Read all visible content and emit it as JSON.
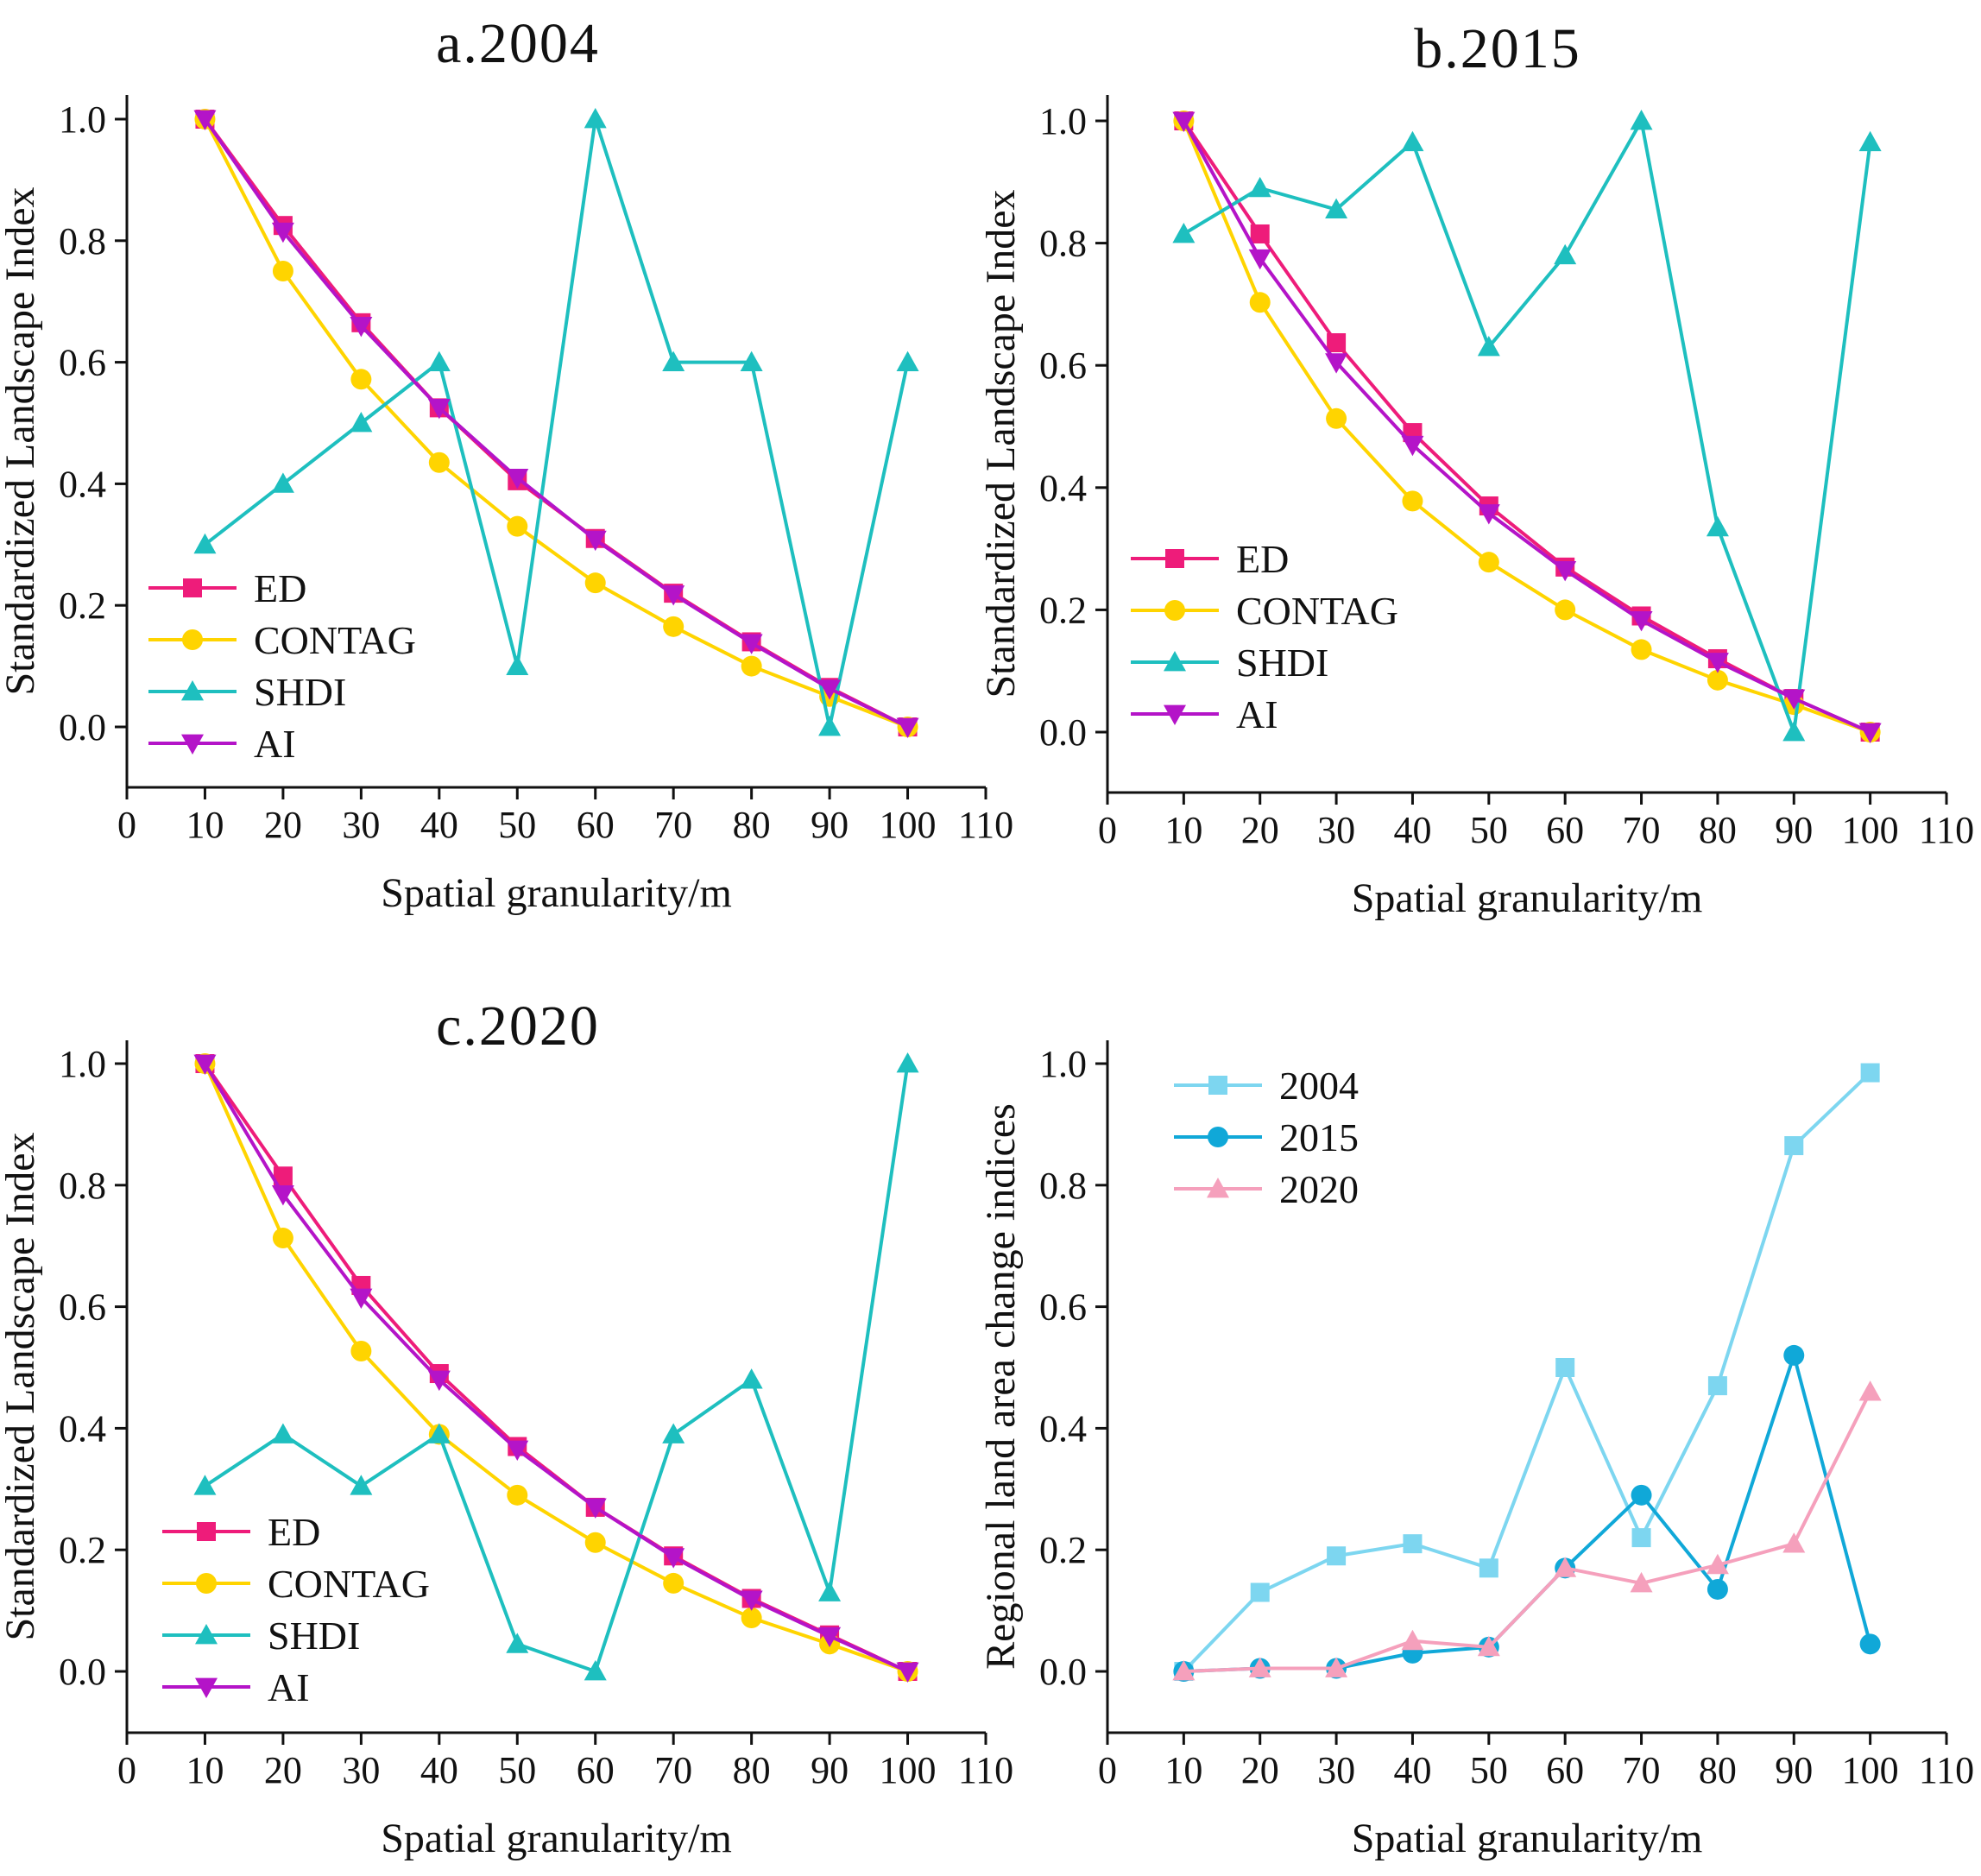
{
  "chart_data": [
    {
      "type": "line",
      "title": "a.2004",
      "xlabel": "Spatial granularity/m",
      "ylabel": "Standardized Landscape Index",
      "xlim": [
        0,
        110
      ],
      "ylim": [
        -0.1,
        1.0
      ],
      "xticks": [
        "0",
        "10",
        "20",
        "30",
        "40",
        "50",
        "60",
        "70",
        "80",
        "90",
        "100",
        "110"
      ],
      "yticks": [
        "0.0",
        "0.2",
        "0.4",
        "0.6",
        "0.8",
        "1.0"
      ],
      "legend_position": "lower-left",
      "x": [
        10,
        20,
        30,
        40,
        50,
        60,
        70,
        80,
        90,
        100
      ],
      "series": [
        {
          "name": "ED",
          "color": "#ee1c7a",
          "marker": "square",
          "values": [
            1.0,
            0.825,
            0.665,
            0.525,
            0.405,
            0.31,
            0.22,
            0.14,
            0.065,
            0.0
          ]
        },
        {
          "name": "CONTAG",
          "color": "#ffd400",
          "marker": "circle",
          "values": [
            1.0,
            0.75,
            0.572,
            0.435,
            0.33,
            0.237,
            0.165,
            0.1,
            0.05,
            0.0
          ]
        },
        {
          "name": "SHDI",
          "color": "#1ebfbf",
          "marker": "triangle-up",
          "values": [
            0.3,
            0.4,
            0.5,
            0.6,
            0.1,
            1.0,
            0.6,
            0.6,
            0.0,
            0.6
          ]
        },
        {
          "name": "AI",
          "color": "#b414c8",
          "marker": "triangle-down",
          "values": [
            1.0,
            0.815,
            0.66,
            0.525,
            0.41,
            0.308,
            0.218,
            0.138,
            0.063,
            0.0
          ]
        }
      ]
    },
    {
      "type": "line",
      "title": "b.2015",
      "xlabel": "Spatial granularity/m",
      "ylabel": "Standardized Landscape Index",
      "xlim": [
        0,
        110
      ],
      "ylim": [
        -0.1,
        1.0
      ],
      "xticks": [
        "0",
        "10",
        "20",
        "30",
        "40",
        "50",
        "60",
        "70",
        "80",
        "90",
        "100",
        "110"
      ],
      "yticks": [
        "0.0",
        "0.2",
        "0.4",
        "0.6",
        "0.8",
        "1.0"
      ],
      "legend_position": "lower-left",
      "x": [
        10,
        20,
        30,
        40,
        50,
        60,
        70,
        80,
        90,
        100
      ],
      "series": [
        {
          "name": "ED",
          "color": "#ee1c7a",
          "marker": "square",
          "values": [
            1.0,
            0.815,
            0.637,
            0.49,
            0.37,
            0.27,
            0.19,
            0.12,
            0.055,
            0.0
          ]
        },
        {
          "name": "CONTAG",
          "color": "#ffd400",
          "marker": "circle",
          "values": [
            1.0,
            0.703,
            0.513,
            0.378,
            0.278,
            0.2,
            0.135,
            0.085,
            0.045,
            0.0
          ]
        },
        {
          "name": "SHDI",
          "color": "#1ebfbf",
          "marker": "triangle-up",
          "values": [
            0.815,
            0.89,
            0.855,
            0.965,
            0.63,
            0.78,
            1.0,
            0.335,
            0.0,
            0.965
          ]
        },
        {
          "name": "AI",
          "color": "#b414c8",
          "marker": "triangle-down",
          "values": [
            1.0,
            0.775,
            0.605,
            0.47,
            0.358,
            0.265,
            0.183,
            0.115,
            0.055,
            0.0
          ]
        }
      ]
    },
    {
      "type": "line",
      "title": "c.2020",
      "xlabel": "Spatial granularity/m",
      "ylabel": "Standardized Landscape Index",
      "xlim": [
        0,
        110
      ],
      "ylim": [
        -0.1,
        1.0
      ],
      "xticks": [
        "0",
        "10",
        "20",
        "30",
        "40",
        "50",
        "60",
        "70",
        "80",
        "90",
        "100",
        "110"
      ],
      "yticks": [
        "0.0",
        "0.2",
        "0.4",
        "0.6",
        "0.8",
        "1.0"
      ],
      "legend_position": "lower-left",
      "x": [
        10,
        20,
        30,
        40,
        50,
        60,
        70,
        80,
        90,
        100
      ],
      "series": [
        {
          "name": "ED",
          "color": "#ee1c7a",
          "marker": "square",
          "values": [
            1.0,
            0.815,
            0.635,
            0.49,
            0.37,
            0.27,
            0.19,
            0.12,
            0.06,
            0.0
          ]
        },
        {
          "name": "CONTAG",
          "color": "#ffd400",
          "marker": "circle",
          "values": [
            1.0,
            0.713,
            0.527,
            0.39,
            0.29,
            0.212,
            0.145,
            0.088,
            0.045,
            0.0
          ]
        },
        {
          "name": "SHDI",
          "color": "#1ebfbf",
          "marker": "triangle-up",
          "values": [
            0.305,
            0.39,
            0.305,
            0.39,
            0.045,
            0.0,
            0.39,
            0.48,
            0.13,
            1.0
          ]
        },
        {
          "name": "AI",
          "color": "#b414c8",
          "marker": "triangle-down",
          "values": [
            1.0,
            0.785,
            0.615,
            0.48,
            0.365,
            0.27,
            0.188,
            0.118,
            0.058,
            0.0
          ]
        }
      ]
    },
    {
      "type": "line",
      "title": "",
      "xlabel": "Spatial granularity/m",
      "ylabel": "Regional land area change indices",
      "xlim": [
        0,
        110
      ],
      "ylim": [
        -0.1,
        1.0
      ],
      "xticks": [
        "0",
        "10",
        "20",
        "30",
        "40",
        "50",
        "60",
        "70",
        "80",
        "90",
        "100",
        "110"
      ],
      "yticks": [
        "0.0",
        "0.2",
        "0.4",
        "0.6",
        "0.8",
        "1.0"
      ],
      "legend_position": "top-left",
      "x": [
        10,
        20,
        30,
        40,
        50,
        60,
        70,
        80,
        90,
        100
      ],
      "series": [
        {
          "name": "2004",
          "color": "#7dd6f0",
          "marker": "square",
          "values": [
            0.0,
            0.13,
            0.19,
            0.21,
            0.17,
            0.5,
            0.22,
            0.47,
            0.865,
            0.985
          ]
        },
        {
          "name": "2015",
          "color": "#10a8d8",
          "marker": "circle",
          "values": [
            0.0,
            0.005,
            0.005,
            0.03,
            0.04,
            0.17,
            0.29,
            0.135,
            0.52,
            0.045
          ]
        },
        {
          "name": "2020",
          "color": "#f5a0bc",
          "marker": "triangle-up",
          "values": [
            0.0,
            0.005,
            0.005,
            0.05,
            0.04,
            0.17,
            0.145,
            0.175,
            0.21,
            0.46
          ]
        }
      ]
    }
  ]
}
